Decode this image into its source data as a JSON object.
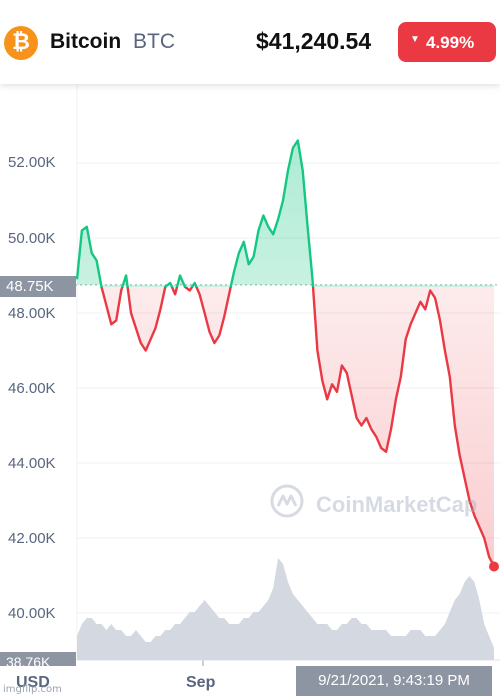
{
  "header": {
    "coin_icon_glyph": "₿",
    "coin_name": "Bitcoin",
    "coin_symbol": "BTC",
    "price": "$41,240.54",
    "change_arrow": "▼",
    "change": "4.99%",
    "colors": {
      "accent": "#f7931a",
      "negative": "#ea3943",
      "positive": "#16c784"
    }
  },
  "chart": {
    "y_labels": [
      "52.00K",
      "50.00K",
      "48.00K",
      "46.00K",
      "44.00K",
      "42.00K",
      "40.00K"
    ],
    "reference_label": "48.75K",
    "bottom_label": "38.76K",
    "x_labels": [
      "Sep"
    ],
    "currency": "USD",
    "hover_datetime": "9/21/2021, 9:43:19 PM",
    "watermark": "CoinMarketCap",
    "credit": "imgflip.com"
  },
  "chart_data": {
    "type": "line",
    "reference_value": 48750,
    "current_value": 41240.54,
    "ylim": [
      38760,
      53000
    ],
    "y_ticks": [
      52000,
      50000,
      48000,
      46000,
      44000,
      42000,
      40000
    ],
    "series": [
      {
        "values": [
          48900,
          50200,
          50300,
          49600,
          49400,
          48700,
          48200,
          47700,
          47800,
          48600,
          49000,
          48000,
          47600,
          47200,
          47000,
          47300,
          47600,
          48100,
          48700,
          48800,
          48500,
          49000,
          48700,
          48600,
          48800,
          48500,
          48000,
          47500,
          47200,
          47400,
          47900,
          48500,
          49100,
          49600,
          49900,
          49300,
          49500,
          50200,
          50600,
          50300,
          50100,
          50500,
          51000,
          51800,
          52400,
          52600,
          51800,
          50300,
          48900,
          47000,
          46200,
          45700,
          46100,
          45900,
          46600,
          46400,
          45800,
          45200,
          45000,
          45200,
          44900,
          44700,
          44400,
          44300,
          44900,
          45700,
          46300,
          47300,
          47700,
          48000,
          48300,
          48100,
          48600,
          48400,
          47800,
          47000,
          46300,
          45000,
          44200,
          43600,
          43000,
          42600,
          42300,
          42000,
          41500,
          41240.54
        ],
        "volume": [
          40.4,
          40.6,
          40.7,
          40.7,
          40.6,
          40.6,
          40.5,
          40.6,
          40.5,
          40.5,
          40.4,
          40.4,
          40.5,
          40.4,
          40.3,
          40.3,
          40.4,
          40.4,
          40.5,
          40.5,
          40.6,
          40.6,
          40.7,
          40.8,
          40.8,
          40.9,
          41.0,
          40.9,
          40.8,
          40.7,
          40.7,
          40.6,
          40.6,
          40.6,
          40.7,
          40.7,
          40.8,
          40.8,
          40.9,
          41.0,
          41.2,
          41.7,
          41.6,
          41.3,
          41.1,
          41.0,
          40.9,
          40.8,
          40.7,
          40.6,
          40.6,
          40.6,
          40.5,
          40.5,
          40.6,
          40.6,
          40.7,
          40.7,
          40.6,
          40.6,
          40.5,
          40.5,
          40.5,
          40.5,
          40.4,
          40.4,
          40.4,
          40.4,
          40.5,
          40.5,
          40.5,
          40.4,
          40.4,
          40.4,
          40.5,
          40.6,
          40.8,
          41.0,
          41.1,
          41.3,
          41.4,
          41.3,
          41.0,
          40.6,
          40.4,
          40.2
        ]
      }
    ]
  }
}
